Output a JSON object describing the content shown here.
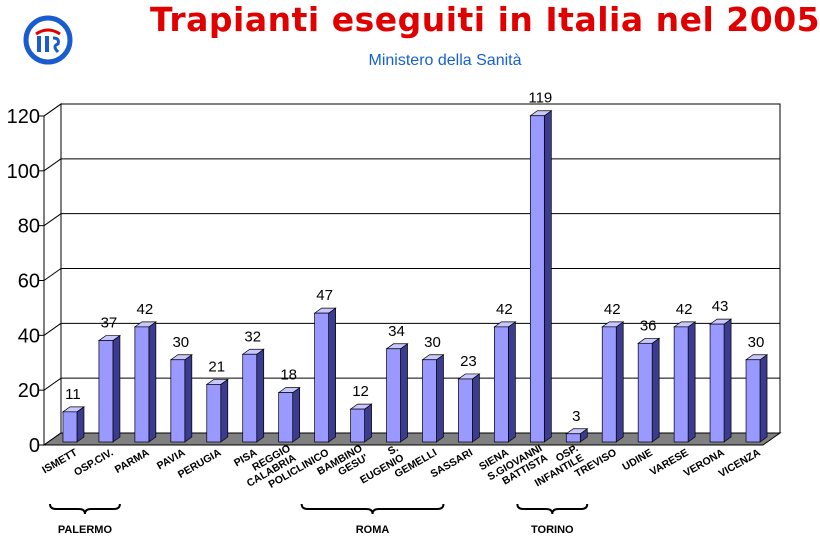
{
  "header": {
    "title": "Trapianti eseguiti in Italia nel 2005",
    "subtitle": "Ministero della Sanità"
  },
  "colors": {
    "title": "#e00000",
    "subtitle": "#1560d8",
    "bar_front": "#9999ff",
    "bar_side": "#3b3b8f",
    "bar_top": "#c8c8ff",
    "floor": "#808080",
    "wall": "#ffffff",
    "logo": "#1a5bd0"
  },
  "logo_icon": "ministry-logo-icon",
  "chart_data": {
    "type": "bar",
    "categories": [
      "ISMETT",
      "OSP.CIV.",
      "PARMA",
      "PAVIA",
      "PERUGIA",
      "PISA",
      "REGGIO CALABRIA",
      "POLICLINICO",
      "BAMBINO GESU'",
      "S. EUGENIO",
      "GEMELLI",
      "SASSARI",
      "SIENA",
      "S.GIOVANNI BATTISTA",
      "OSP. INFANTILE",
      "TREVISO",
      "UDINE",
      "VARESE",
      "VERONA",
      "VICENZA"
    ],
    "values": [
      11,
      37,
      42,
      30,
      21,
      32,
      18,
      47,
      12,
      34,
      30,
      23,
      42,
      119,
      3,
      42,
      36,
      42,
      43,
      30
    ],
    "ylim": [
      0,
      120
    ],
    "yticks": [
      "0",
      "20",
      "40",
      "60",
      "80",
      "100",
      "120"
    ],
    "grid": true,
    "groups": [
      {
        "label": "PALERMO",
        "from": 0,
        "to": 1
      },
      {
        "label": "ROMA",
        "from": 7,
        "to": 10
      },
      {
        "label": "TORINO",
        "from": 13,
        "to": 14
      }
    ]
  }
}
